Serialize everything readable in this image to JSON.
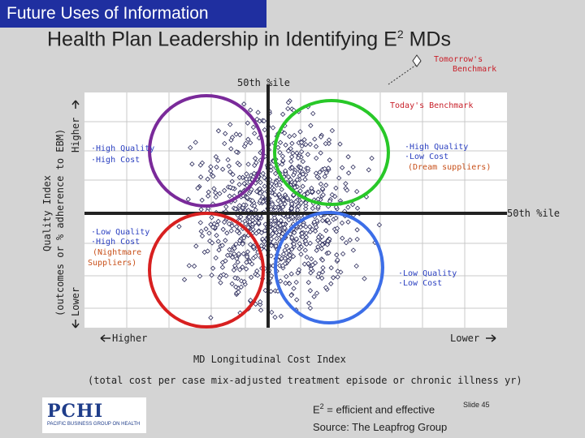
{
  "header": {
    "tag": "Future Uses of Information",
    "title_main": "Health Plan Leadership in Identifying E",
    "title_sup": "2",
    "title_end": " MDs"
  },
  "chart_data": {
    "type": "scatter",
    "title": "Health Plan Leadership in Identifying E2 MDs",
    "xlabel": "MD Longitudinal Cost Index",
    "xlabel_sub": "(total cost per case mix-adjusted treatment episode or chronic illness yr)",
    "ylabel": "Quality Index",
    "ylabel_sub": "(outcomes or % adherence to EBM)",
    "x_end_labels": {
      "left": "Higher",
      "right": "Lower"
    },
    "y_end_labels": {
      "top": "Higher",
      "bottom": "Lower"
    },
    "reference_lines": {
      "vertical": "50th %ile",
      "horizontal": "50th %ile"
    },
    "annotations": {
      "tomorrow": [
        "Tomorrow's",
        "Benchmark"
      ],
      "today": "Today's Benchmark",
      "q_tl": [
        "·High Quality",
        "·High Cost"
      ],
      "q_tr": [
        "·High Quality",
        "·Low Cost",
        "(Dream suppliers)"
      ],
      "q_bl": [
        "·Low Quality",
        "·High Cost",
        "(Nightmare",
        "Suppliers)"
      ],
      "q_br": [
        "·Low Quality",
        "·Low Cost"
      ]
    },
    "quadrant_colors": {
      "high_quality_high_cost": "#7a2a9a",
      "high_quality_low_cost": "#28c828",
      "low_quality_high_cost": "#d82020",
      "low_quality_low_cost": "#3c6ee8"
    }
  },
  "footer": {
    "logo": "PCHI",
    "logo_sub": "PACIFIC BUSINESS GROUP ON HEALTH",
    "efficient_prefix": "E",
    "efficient_sup": "2",
    "efficient_text": " = efficient and effective",
    "slide": "Slide 45",
    "source": "Source: The Leapfrog Group"
  }
}
